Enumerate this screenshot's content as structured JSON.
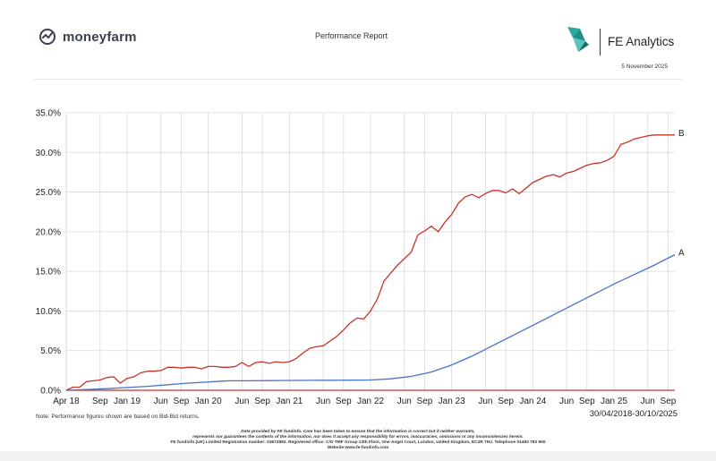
{
  "header": {
    "brand_name": "moneyfarm",
    "report_title": "Performance Report",
    "provider_name": "FE Analytics",
    "report_date": "5 November 2025"
  },
  "colors": {
    "series_a": "#4a72c4",
    "series_b": "#c8332b",
    "grid": "#d9d9d9",
    "axis": "#c8332b",
    "fe_teal": "#2aa7a0"
  },
  "icons": [
    "moneyfarm-logo-icon",
    "fe-analytics-logo-icon"
  ],
  "chart_data": {
    "type": "line",
    "x_tick_labels": [
      "Apr 18",
      "Sep",
      "Jan 19",
      "Jun",
      "Sep",
      "Jan 20",
      "Jun",
      "Sep",
      "Jan 21",
      "Jun",
      "Sep",
      "Jan 22",
      "Jun",
      "Sep",
      "Jan 23",
      "Jun",
      "Sep",
      "Jan 24",
      "Jun",
      "Sep",
      "Jan 25",
      "Jun",
      "Sep"
    ],
    "x_tick_months": [
      0,
      5,
      9,
      14,
      17,
      21,
      26,
      29,
      33,
      38,
      41,
      45,
      50,
      53,
      57,
      62,
      65,
      69,
      74,
      77,
      81,
      86,
      89
    ],
    "x_range_months": [
      0,
      90
    ],
    "y_tick_labels": [
      "0.0%",
      "5.0%",
      "10.0%",
      "15.0%",
      "20.0%",
      "25.0%",
      "30.0%",
      "35.0%"
    ],
    "ylim": [
      0,
      35
    ],
    "grid": true,
    "series": [
      {
        "name": "A",
        "month_index": [
          0,
          3,
          6,
          9,
          12,
          15,
          18,
          21,
          24,
          27,
          30,
          33,
          36,
          39,
          42,
          45,
          48,
          51,
          54,
          57,
          60,
          63,
          66,
          69,
          72,
          75,
          78,
          81,
          84,
          87,
          90
        ],
        "values": [
          0,
          0.1,
          0.2,
          0.35,
          0.5,
          0.7,
          0.9,
          1.05,
          1.2,
          1.2,
          1.22,
          1.24,
          1.25,
          1.26,
          1.28,
          1.3,
          1.45,
          1.75,
          2.3,
          3.2,
          4.3,
          5.6,
          6.9,
          8.2,
          9.5,
          10.8,
          12.1,
          13.4,
          14.6,
          15.8,
          17.1
        ]
      },
      {
        "name": "B",
        "month_index": [
          0,
          1,
          2,
          3,
          4,
          5,
          6,
          7,
          8,
          9,
          10,
          11,
          12,
          13,
          14,
          15,
          16,
          17,
          18,
          19,
          20,
          21,
          22,
          23,
          24,
          25,
          26,
          27,
          28,
          29,
          30,
          31,
          32,
          33,
          34,
          35,
          36,
          37,
          38,
          39,
          40,
          41,
          42,
          43,
          44,
          45,
          46,
          47,
          48,
          49,
          50,
          51,
          52,
          53,
          54,
          55,
          56,
          57,
          58,
          59,
          60,
          61,
          62,
          63,
          64,
          65,
          66,
          67,
          68,
          69,
          70,
          71,
          72,
          73,
          74,
          75,
          76,
          77,
          78,
          79,
          80,
          81,
          82,
          83,
          84,
          85,
          86,
          87,
          88,
          89,
          90
        ],
        "values": [
          0,
          0.4,
          0.4,
          1.1,
          1.2,
          1.3,
          1.6,
          1.7,
          0.9,
          1.5,
          1.7,
          2.2,
          2.4,
          2.4,
          2.5,
          2.9,
          2.9,
          2.8,
          2.9,
          2.9,
          2.7,
          3.0,
          3.0,
          2.9,
          2.9,
          3.0,
          3.5,
          3.0,
          3.5,
          3.6,
          3.4,
          3.6,
          3.5,
          3.6,
          4.0,
          4.7,
          5.3,
          5.5,
          5.6,
          6.2,
          6.8,
          7.6,
          8.5,
          9.1,
          9.0,
          10.0,
          11.5,
          13.8,
          14.8,
          15.8,
          16.6,
          17.4,
          19.6,
          20.1,
          20.7,
          20.0,
          21.2,
          22.2,
          23.6,
          24.4,
          24.7,
          24.3,
          24.8,
          25.2,
          25.2,
          24.9,
          25.4,
          24.8,
          25.5,
          26.2,
          26.6,
          27.0,
          27.2,
          26.9,
          27.4,
          27.6,
          28.0,
          28.4,
          28.6,
          28.7,
          29.0,
          29.5,
          31.0,
          31.3,
          31.7,
          31.9,
          32.1,
          32.2,
          32.2,
          32.2,
          32.2
        ]
      }
    ]
  },
  "notes": {
    "returns_note": "Note: Performance figures shown are based on Bid-Bid returns.",
    "date_range": "30/04/2018-30/10/2025"
  },
  "footer": {
    "line1": "Data provided by FE fundinfo. Care has been taken to ensure that the information is correct but it neither warrants,",
    "line2": "represents nor guarantees the contents of the information, nor does it accept any responsibility for errors, inaccuracies, omissions or any inconsistencies herein.",
    "line3": "FE fundinfo (UK) Limited Registration number: 03672592. Registered office: C/O TMF Group 13th Floor, One Angel Court, London, United Kingdom, EC2R 7HJ. Telephone 01483 783 900",
    "line4": "Website:www.fe-fundinfo.com"
  }
}
